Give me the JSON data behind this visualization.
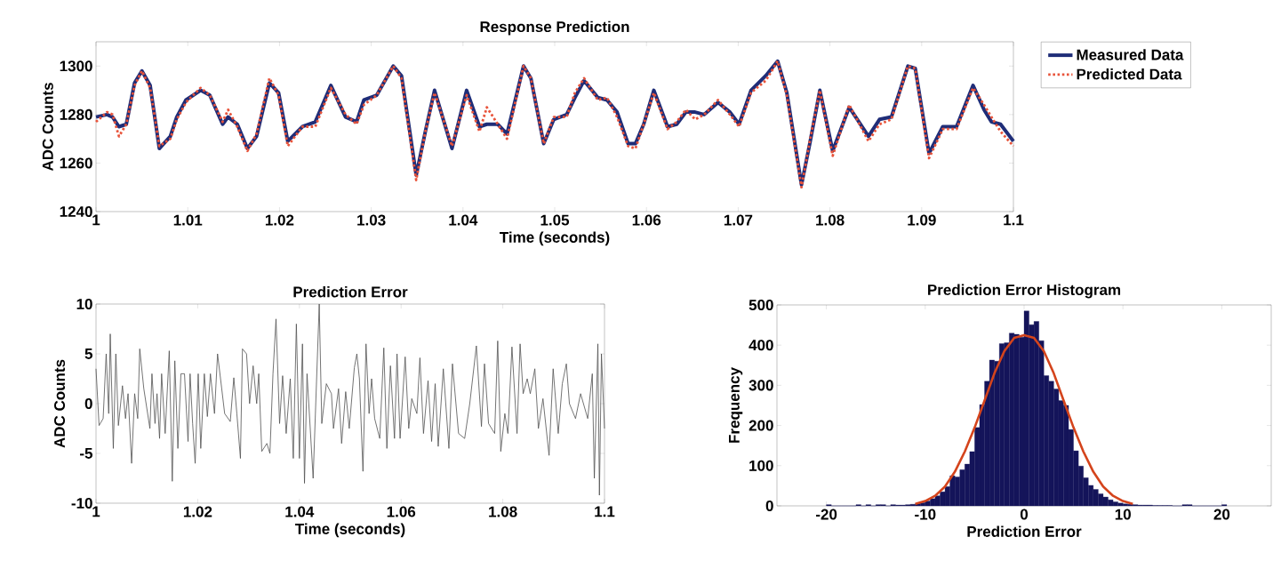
{
  "chart_data": [
    {
      "type": "line",
      "title": "Response Prediction",
      "xlabel": "Time (seconds)",
      "ylabel": "ADC Counts",
      "x": [
        1.0,
        1.0012,
        1.0018,
        1.0025,
        1.0033,
        1.0042,
        1.005,
        1.0059,
        1.0069,
        1.0081,
        1.0088,
        1.0098,
        1.0114,
        1.0124,
        1.0138,
        1.0144,
        1.0154,
        1.0165,
        1.0175,
        1.0189,
        1.0199,
        1.0209,
        1.0225,
        1.0239,
        1.0256,
        1.0272,
        1.0284,
        1.0292,
        1.0306,
        1.0324,
        1.0333,
        1.0349,
        1.0359,
        1.0369,
        1.0388,
        1.0404,
        1.0418,
        1.0426,
        1.0438,
        1.0448,
        1.0466,
        1.0474,
        1.0488,
        1.0499,
        1.0513,
        1.0522,
        1.0532,
        1.0547,
        1.0557,
        1.0568,
        1.058,
        1.0588,
        1.0597,
        1.0608,
        1.0623,
        1.0633,
        1.0643,
        1.0653,
        1.0663,
        1.0678,
        1.0691,
        1.0701,
        1.0714,
        1.073,
        1.0743,
        1.0753,
        1.0769,
        1.0778,
        1.0789,
        1.0803,
        1.0821,
        1.0842,
        1.0854,
        1.0867,
        1.0885,
        1.0893,
        1.0908,
        1.0923,
        1.0938,
        1.0956,
        1.0968,
        1.0976,
        1.0986,
        1.1
      ],
      "series": [
        {
          "name": "Measured Data",
          "color": "#1f2d78",
          "line_style": "solid",
          "values": [
            1279,
            1280,
            1279,
            1275,
            1276,
            1293,
            1298,
            1292,
            1266,
            1271,
            1279,
            1286,
            1290,
            1288,
            1276,
            1279,
            1276,
            1266,
            1271,
            1293,
            1289,
            1269,
            1275,
            1277,
            1292,
            1279,
            1277,
            1286,
            1288,
            1300,
            1296,
            1255,
            1273,
            1290,
            1266,
            1290,
            1275,
            1276,
            1276,
            1272,
            1300,
            1295,
            1268,
            1278,
            1280,
            1287,
            1294,
            1287,
            1286,
            1281,
            1268,
            1268,
            1276,
            1290,
            1275,
            1276,
            1281,
            1281,
            1280,
            1285,
            1281,
            1276,
            1290,
            1296,
            1302,
            1289,
            1251,
            1268,
            1290,
            1265,
            1283,
            1271,
            1278,
            1279,
            1300,
            1299,
            1264,
            1275,
            1275,
            1292,
            1282,
            1277,
            1276,
            1269
          ]
        },
        {
          "name": "Predicted Data",
          "color": "#e8533a",
          "line_style": "dotted",
          "values": [
            1277,
            1281,
            1280,
            1271,
            1276,
            1292,
            1298,
            1291,
            1267,
            1270,
            1278,
            1285,
            1291,
            1288,
            1277,
            1282,
            1275,
            1265,
            1272,
            1295,
            1288,
            1267,
            1275,
            1275,
            1291,
            1280,
            1276,
            1284,
            1288,
            1300,
            1295,
            1253,
            1273,
            1289,
            1267,
            1288,
            1273,
            1283,
            1276,
            1270,
            1300,
            1295,
            1268,
            1279,
            1279,
            1289,
            1295,
            1286,
            1287,
            1279,
            1267,
            1266,
            1276,
            1289,
            1274,
            1277,
            1282,
            1278,
            1280,
            1286,
            1280,
            1275,
            1289,
            1294,
            1302,
            1288,
            1250,
            1269,
            1290,
            1263,
            1284,
            1269,
            1276,
            1278,
            1300,
            1299,
            1262,
            1274,
            1274,
            1291,
            1284,
            1279,
            1273,
            1267
          ]
        }
      ],
      "xlim": [
        1,
        1.1
      ],
      "ylim": [
        1240,
        1310
      ],
      "xticks": [
        1,
        1.01,
        1.02,
        1.03,
        1.04,
        1.05,
        1.06,
        1.07,
        1.08,
        1.09,
        1.1
      ],
      "yticks": [
        1240,
        1260,
        1280,
        1300
      ],
      "legend": "top right",
      "marker": "none"
    },
    {
      "type": "line",
      "title": "Prediction Error",
      "xlabel": "Time (seconds)",
      "ylabel": "ADC Counts",
      "color": "#505050",
      "x": [
        1.0,
        1.0006,
        1.0014,
        1.002,
        1.0025,
        1.0028,
        1.0034,
        1.0039,
        1.0044,
        1.0052,
        1.0058,
        1.0063,
        1.007,
        1.0076,
        1.0082,
        1.0086,
        1.0094,
        1.0106,
        1.011,
        1.0116,
        1.012,
        1.0125,
        1.0129,
        1.0136,
        1.0144,
        1.015,
        1.0155,
        1.0161,
        1.0167,
        1.0174,
        1.0181,
        1.0185,
        1.019,
        1.0195,
        1.0201,
        1.0206,
        1.0213,
        1.0219,
        1.0225,
        1.0233,
        1.0239,
        1.0247,
        1.0253,
        1.0264,
        1.0271,
        1.0277,
        1.0284,
        1.0288,
        1.0296,
        1.0302,
        1.0309,
        1.0316,
        1.032,
        1.0326,
        1.0336,
        1.0342,
        1.0348,
        1.0354,
        1.0361,
        1.0367,
        1.0374,
        1.0382,
        1.0388,
        1.0394,
        1.04,
        1.0406,
        1.041,
        1.0415,
        1.0427,
        1.0439,
        1.0444,
        1.0453,
        1.0463,
        1.0467,
        1.0477,
        1.0483,
        1.0491,
        1.0498,
        1.0508,
        1.0513,
        1.0518,
        1.0525,
        1.0531,
        1.0537,
        1.0542,
        1.0548,
        1.0558,
        1.0566,
        1.0572,
        1.0579,
        1.0587,
        1.0592,
        1.0598,
        1.0608,
        1.0615,
        1.0621,
        1.0631,
        1.0637,
        1.0644,
        1.0653,
        1.066,
        1.0667,
        1.0673,
        1.0683,
        1.0694,
        1.0701,
        1.0713,
        1.0725,
        1.0735,
        1.0748,
        1.0758,
        1.0764,
        1.0772,
        1.0784,
        1.079,
        1.0796,
        1.0804,
        1.081,
        1.0818,
        1.0828,
        1.0834,
        1.084,
        1.0848,
        1.0854,
        1.0863,
        1.087,
        1.0879,
        1.0891,
        1.0899,
        1.0909,
        1.0917,
        1.0925,
        1.0931,
        1.0943,
        1.0953,
        1.0967,
        1.0976,
        1.098,
        1.0987,
        1.099,
        1.0994,
        1.1
      ],
      "values": [
        3.5,
        -2.2,
        -1.5,
        5,
        -1,
        7,
        -4.5,
        5,
        -2.2,
        1.8,
        -1.5,
        1,
        -6,
        1,
        -1.5,
        5.5,
        1.5,
        -2.5,
        3,
        -2,
        1,
        -3.5,
        3,
        -3,
        5.3,
        -7.8,
        4.3,
        -4.5,
        3,
        3,
        -3.8,
        3,
        -2,
        -6,
        3,
        -4.5,
        3,
        -1.3,
        3,
        -1,
        5,
        1.6,
        -1,
        -1.8,
        2.6,
        -1,
        -5.5,
        5.5,
        5,
        0,
        3.8,
        0,
        3,
        -4.8,
        -4,
        -5,
        3,
        8.5,
        -2,
        2.8,
        -3,
        2.5,
        -5.5,
        8,
        -5.5,
        6,
        -8,
        3,
        -7.5,
        10,
        -2,
        2,
        1,
        -2.5,
        1.5,
        -4,
        1.2,
        -2.5,
        3.6,
        5,
        2.5,
        -6.8,
        6,
        -1,
        2.5,
        -1.5,
        -3.5,
        5.6,
        -4.5,
        3.8,
        -3.5,
        5,
        -3.5,
        4.7,
        -2.5,
        0.5,
        -1,
        4.6,
        -3,
        2.3,
        -3.8,
        2,
        -4.3,
        3.5,
        -4.5,
        4,
        -3,
        -3.5,
        0,
        5.8,
        -2.3,
        4,
        -2,
        -3,
        6.3,
        -4.8,
        -1,
        -3,
        5.7,
        -3,
        6,
        1,
        2.5,
        1,
        3.5,
        -2.5,
        0.5,
        -5.2,
        3.5,
        -3,
        2,
        4,
        0,
        -1.5,
        1,
        -1.5,
        3,
        -7.5,
        6,
        -9.2,
        5,
        -2.5
      ],
      "xlim": [
        1,
        1.1
      ],
      "ylim": [
        -10,
        10
      ],
      "xticks": [
        1,
        1.02,
        1.04,
        1.06,
        1.08,
        1.1
      ],
      "yticks": [
        -10,
        -5,
        0,
        5,
        10
      ],
      "marker": "none"
    },
    {
      "type": "histogram",
      "title": "Prediction Error Histogram",
      "xlabel": "Prediction Error",
      "ylabel": "Frequency",
      "series": [
        {
          "type": "histogram",
          "color": "#14145a",
          "bins": [
            -20,
            -19.5,
            -19,
            -18.5,
            -18,
            -17.5,
            -17,
            -16.5,
            -16,
            -15.5,
            -15,
            -14.5,
            -14,
            -13.5,
            -13,
            -12.5,
            -12,
            -11.5,
            -11,
            -10.5,
            -10,
            -9.5,
            -9,
            -8.5,
            -8,
            -7.5,
            -7,
            -6.5,
            -6,
            -5.5,
            -5,
            -4.5,
            -4,
            -3.5,
            -3,
            -2.5,
            -2,
            -1.5,
            -1,
            -0.5,
            0,
            0.5,
            1,
            1.5,
            2,
            2.5,
            3,
            3.5,
            4,
            4.5,
            5,
            5.5,
            6,
            6.5,
            7,
            7.5,
            8,
            8.5,
            9,
            9.5,
            10,
            10.5,
            11,
            11.5,
            12,
            12.5,
            13,
            13.5,
            14,
            14.5,
            15,
            15.5,
            16,
            16.5,
            17,
            17.5,
            18,
            18.5,
            19,
            19.5,
            20,
            20.5
          ],
          "values": [
            3,
            0,
            0,
            0,
            0,
            0,
            3,
            0,
            3,
            0,
            3,
            3,
            0,
            3,
            2,
            2,
            3,
            4,
            6,
            8,
            12,
            18,
            25,
            35,
            48,
            75,
            72,
            90,
            104,
            135,
            195,
            252,
            310,
            363,
            360,
            404,
            406,
            430,
            427,
            420,
            485,
            451,
            459,
            411,
            324,
            310,
            291,
            262,
            250,
            190,
            137,
            99,
            70,
            51,
            41,
            30,
            22,
            15,
            10,
            7,
            5,
            4,
            3,
            2,
            2,
            2,
            1,
            1,
            1,
            1,
            0,
            0,
            3,
            3,
            0,
            0,
            0,
            0,
            0,
            0,
            3
          ]
        },
        {
          "type": "line",
          "color": "#d4441c",
          "x": [
            -11,
            -10,
            -9,
            -8,
            -7,
            -6,
            -5,
            -4,
            -3,
            -2,
            -1,
            0,
            1,
            2,
            3,
            4,
            5,
            6,
            7,
            8,
            9,
            10,
            11
          ],
          "values": [
            5,
            12,
            25,
            48,
            85,
            135,
            195,
            262,
            330,
            385,
            418,
            425,
            418,
            385,
            330,
            262,
            195,
            135,
            85,
            48,
            25,
            12,
            5
          ]
        }
      ],
      "xlim": [
        -25,
        25
      ],
      "ylim": [
        0,
        500
      ],
      "xticks": [
        -20,
        -10,
        0,
        10,
        20
      ],
      "yticks": [
        0,
        100,
        200,
        300,
        400,
        500
      ]
    }
  ]
}
